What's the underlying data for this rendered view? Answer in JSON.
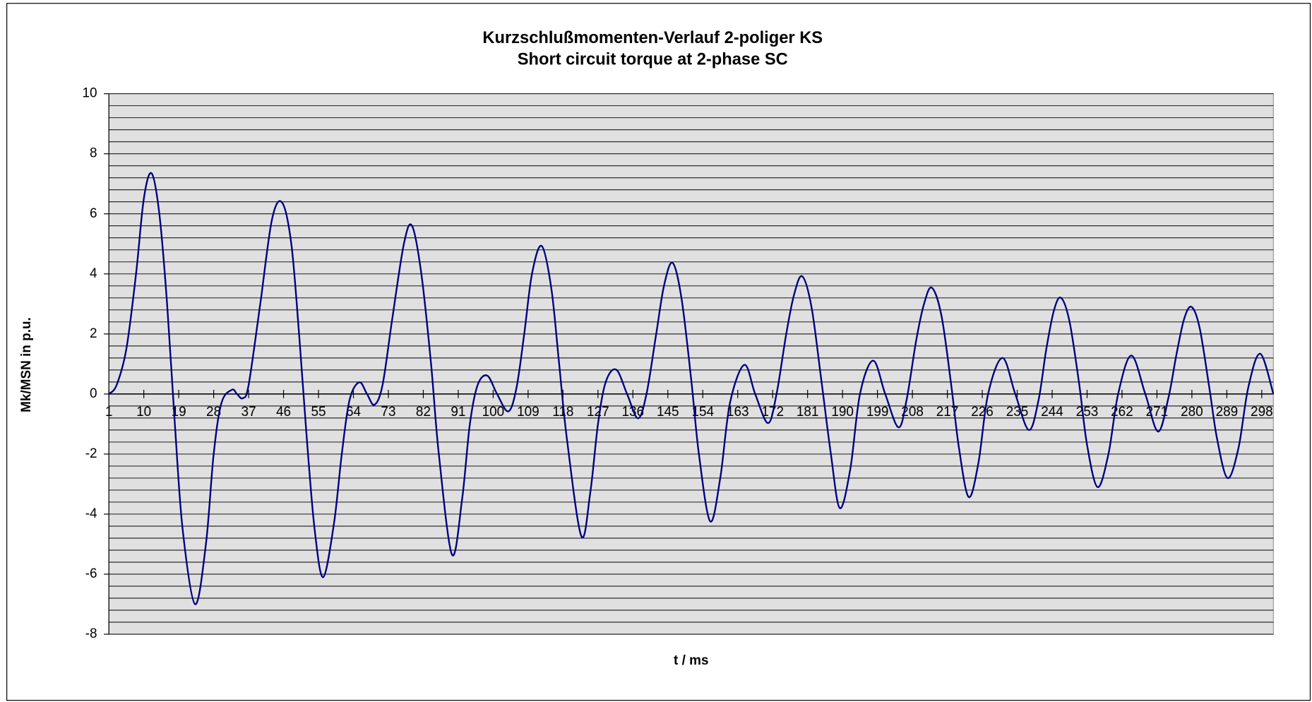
{
  "chart_data": {
    "type": "line",
    "title": [
      "Kurzschlußmomenten-Verlauf 2-poliger KS",
      "Short circuit torque at 2-phase SC"
    ],
    "x_label": "t / ms",
    "y_label": "Mk/MSN in p.u.",
    "xlim": [
      1,
      301
    ],
    "ylim": [
      -8,
      10
    ],
    "xticks": [
      1,
      10,
      19,
      28,
      37,
      46,
      55,
      64,
      73,
      82,
      91,
      100,
      109,
      118,
      127,
      136,
      145,
      154,
      163,
      172,
      181,
      190,
      199,
      208,
      217,
      226,
      235,
      244,
      253,
      262,
      271,
      280,
      289,
      298
    ],
    "yticks": [
      -8,
      -6,
      -4,
      -2,
      0,
      2,
      4,
      6,
      8,
      10
    ],
    "ygrid": [
      -8,
      -7.6,
      -7.2,
      -6.8,
      -6.4,
      -6,
      -5.6,
      -5.2,
      -4.8,
      -4.4,
      -4,
      -3.6,
      -3.2,
      -2.8,
      -2.4,
      -2,
      -1.6,
      -1.2,
      -0.8,
      -0.4,
      0,
      0.4,
      0.8,
      1.2,
      1.6,
      2,
      2.4,
      2.8,
      3.2,
      3.6,
      4,
      4.4,
      4.8,
      5.2,
      5.6,
      6,
      6.4,
      6.8,
      7.2,
      7.6,
      8,
      8.4,
      8.8,
      9.2,
      9.6,
      10
    ],
    "grid": true,
    "background": "#e0e0e0",
    "series": [
      {
        "color": "#000080",
        "x": [
          1,
          3,
          5.5,
          8,
          10,
          12,
          14,
          16,
          18,
          20,
          23.2,
          26,
          28,
          30,
          32.7,
          34,
          35.5,
          37,
          40,
          43,
          45.6,
          48,
          50,
          52,
          54,
          56.2,
          59,
          61,
          63,
          65.5,
          67.5,
          69.4,
          71.5,
          74,
          77,
          79.1,
          81.5,
          84,
          86,
          89.4,
          92,
          94,
          96,
          98.5,
          101,
          103.9,
          106,
          108,
          110,
          112.5,
          115,
          117,
          119,
          122.7,
          125,
          127,
          129,
          131.7,
          134.5,
          137.3,
          139.5,
          142,
          144,
          146.2,
          148.5,
          151,
          153,
          155.9,
          158.5,
          161,
          164.7,
          167.5,
          170.8,
          173,
          175.5,
          177.5,
          179.6,
          182,
          184.5,
          187,
          189.3,
          192,
          194.5,
          197.9,
          201,
          204.4,
          206.5,
          209,
          211,
          213,
          215.5,
          218,
          220,
          222.5,
          225,
          227.5,
          231.2,
          234.5,
          238,
          240.5,
          242.5,
          244.5,
          246.3,
          248.5,
          251,
          253,
          255.7,
          258.5,
          261,
          264.4,
          268,
          271.3,
          274,
          276,
          278,
          279.9,
          282,
          284.5,
          286.5,
          289.2,
          292,
          294.5,
          297.6,
          301
        ],
        "values": [
          0,
          0.3,
          1.5,
          4,
          6.5,
          7.35,
          6,
          3,
          -1,
          -4.5,
          -7,
          -5,
          -2,
          -0.3,
          0.14,
          0,
          -0.14,
          0.3,
          3,
          5.8,
          6.38,
          5,
          2,
          -1.5,
          -4.5,
          -6.1,
          -4.3,
          -2,
          -0.2,
          0.39,
          0,
          -0.36,
          0.3,
          2.5,
          5,
          5.6,
          4,
          1,
          -2,
          -5.35,
          -3.5,
          -1,
          0.3,
          0.61,
          0,
          -0.58,
          0.2,
          2,
          4,
          4.93,
          3.5,
          1,
          -1.5,
          -4.73,
          -3.3,
          -1,
          0.4,
          0.81,
          0,
          -0.81,
          0,
          2,
          3.6,
          4.37,
          3.2,
          0.5,
          -2,
          -4.24,
          -2.8,
          -0.3,
          0.97,
          0,
          -0.97,
          0,
          2,
          3.3,
          3.92,
          2.9,
          0.5,
          -2,
          -3.8,
          -2.5,
          0,
          1.11,
          0,
          -1.11,
          -0.2,
          1.8,
          3,
          3.54,
          2.6,
          0.3,
          -1.8,
          -3.43,
          -2.3,
          0,
          1.2,
          0,
          -1.2,
          -0.2,
          1.5,
          2.8,
          3.2,
          2.4,
          0.3,
          -1.7,
          -3.1,
          -2,
          0,
          1.28,
          0,
          -1.25,
          -0.1,
          1.3,
          2.5,
          2.9,
          2.2,
          0.2,
          -1.5,
          -2.8,
          -1.8,
          0.2,
          1.34,
          0
        ]
      }
    ]
  }
}
